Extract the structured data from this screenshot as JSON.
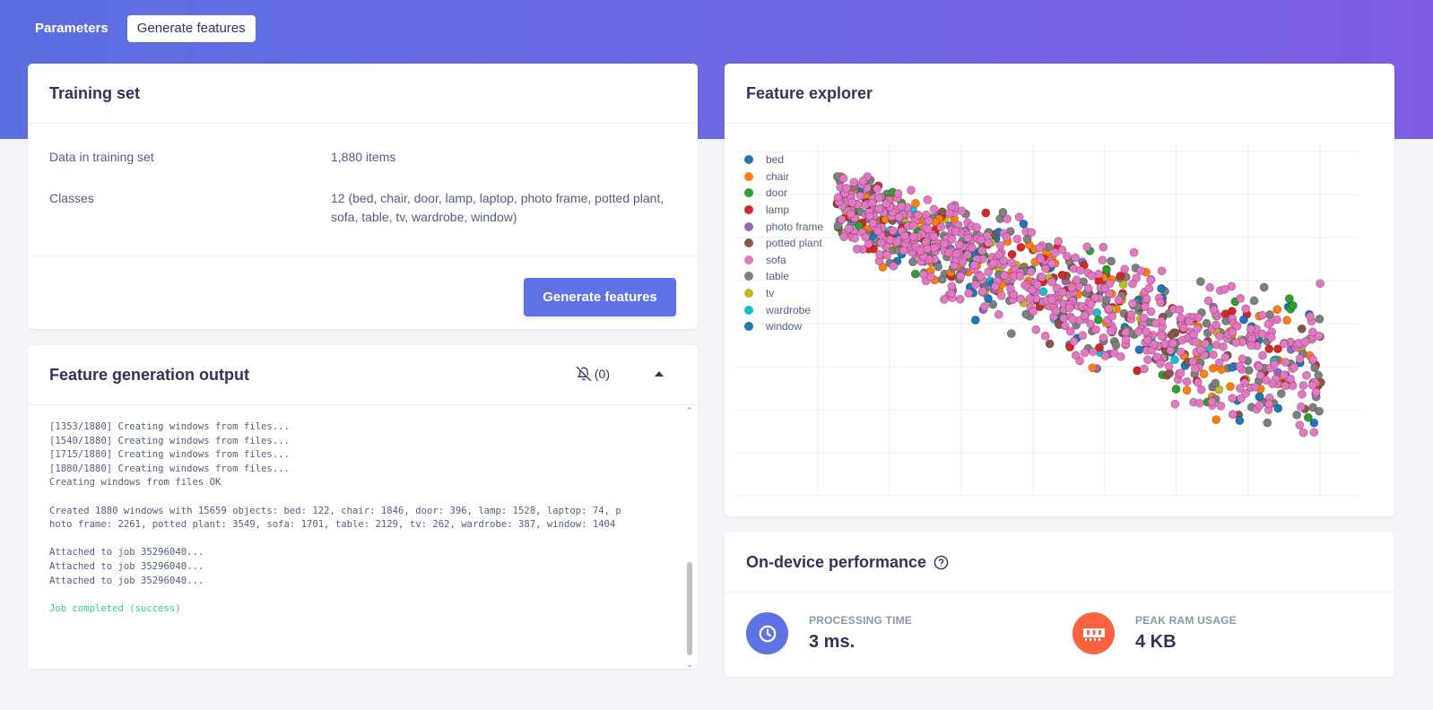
{
  "tabs": [
    "Parameters",
    "Generate features"
  ],
  "training": {
    "title": "Training set",
    "data_label": "Data in training set",
    "data_value": "1,880 items",
    "classes_label": "Classes",
    "classes_value": "12 (bed, chair, door, lamp, laptop, photo frame, potted plant, sofa, table, tv, wardrobe, window)",
    "button": "Generate features"
  },
  "output": {
    "title": "Feature generation output",
    "notification_count": "(0)",
    "lines": [
      "[1353/1880] Creating windows from files...",
      "[1540/1880] Creating windows from files...",
      "[1715/1880] Creating windows from files...",
      "[1880/1880] Creating windows from files...",
      "Creating windows from files OK",
      "",
      "Created 1880 windows with 15659 objects: bed: 122, chair: 1846, door: 396, lamp: 1528, laptop: 74, p",
      "hoto frame: 2261, potted plant: 3549, sofa: 1701, table: 2129, tv: 262, wardrobe: 387, window: 1404",
      "",
      "Attached to job 35296040...",
      "Attached to job 35296040...",
      "Attached to job 35296040...",
      ""
    ],
    "success_line": "Job completed (success)"
  },
  "explorer": {
    "title": "Feature explorer"
  },
  "chart_data": {
    "type": "scatter",
    "title": "",
    "xlabel": "",
    "ylabel": "",
    "grid": true,
    "legend_placement": "top-left",
    "series": [
      {
        "name": "bed",
        "color": "#1f77b4"
      },
      {
        "name": "chair",
        "color": "#ff7f0e"
      },
      {
        "name": "door",
        "color": "#2ca02c"
      },
      {
        "name": "lamp",
        "color": "#d62728"
      },
      {
        "name": "photo frame",
        "color": "#9467bd"
      },
      {
        "name": "potted plant",
        "color": "#8c564b"
      },
      {
        "name": "sofa",
        "color": "#e377c2"
      },
      {
        "name": "table",
        "color": "#7f7f7f"
      },
      {
        "name": "tv",
        "color": "#bcbd22"
      },
      {
        "name": "wardrobe",
        "color": "#17becf"
      },
      {
        "name": "window",
        "color": "#1f77b4"
      }
    ]
  },
  "performance": {
    "title": "On-device performance",
    "processing_label": "PROCESSING TIME",
    "processing_value": "3 ms.",
    "ram_label": "PEAK RAM USAGE",
    "ram_value": "4 KB",
    "processing_color": "#5e72e4",
    "ram_color": "#fb6340"
  }
}
